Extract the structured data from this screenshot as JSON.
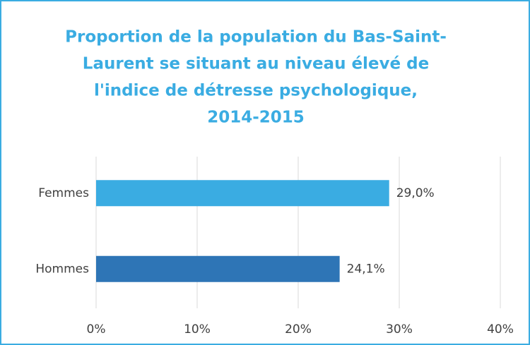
{
  "chart_data": {
    "type": "hbar",
    "title": [
      "Proportion de la population du Bas-Saint-",
      "Laurent se situant au niveau élevé de",
      "l'indice de détresse psychologique,",
      "2014-2015"
    ],
    "categories": [
      "Femmes",
      "Hommes"
    ],
    "values": [
      29.0,
      24.1
    ],
    "value_labels": [
      "29,0%",
      "24,1%"
    ],
    "colors": [
      "#3aace2",
      "#2e75b6"
    ],
    "xlim": [
      0,
      40
    ],
    "xticks": [
      {
        "value": 0,
        "label": "0%"
      },
      {
        "value": 10,
        "label": "10%"
      },
      {
        "value": 20,
        "label": "20%"
      },
      {
        "value": 30,
        "label": "30%"
      },
      {
        "value": 40,
        "label": "40%"
      }
    ],
    "grid": true
  }
}
